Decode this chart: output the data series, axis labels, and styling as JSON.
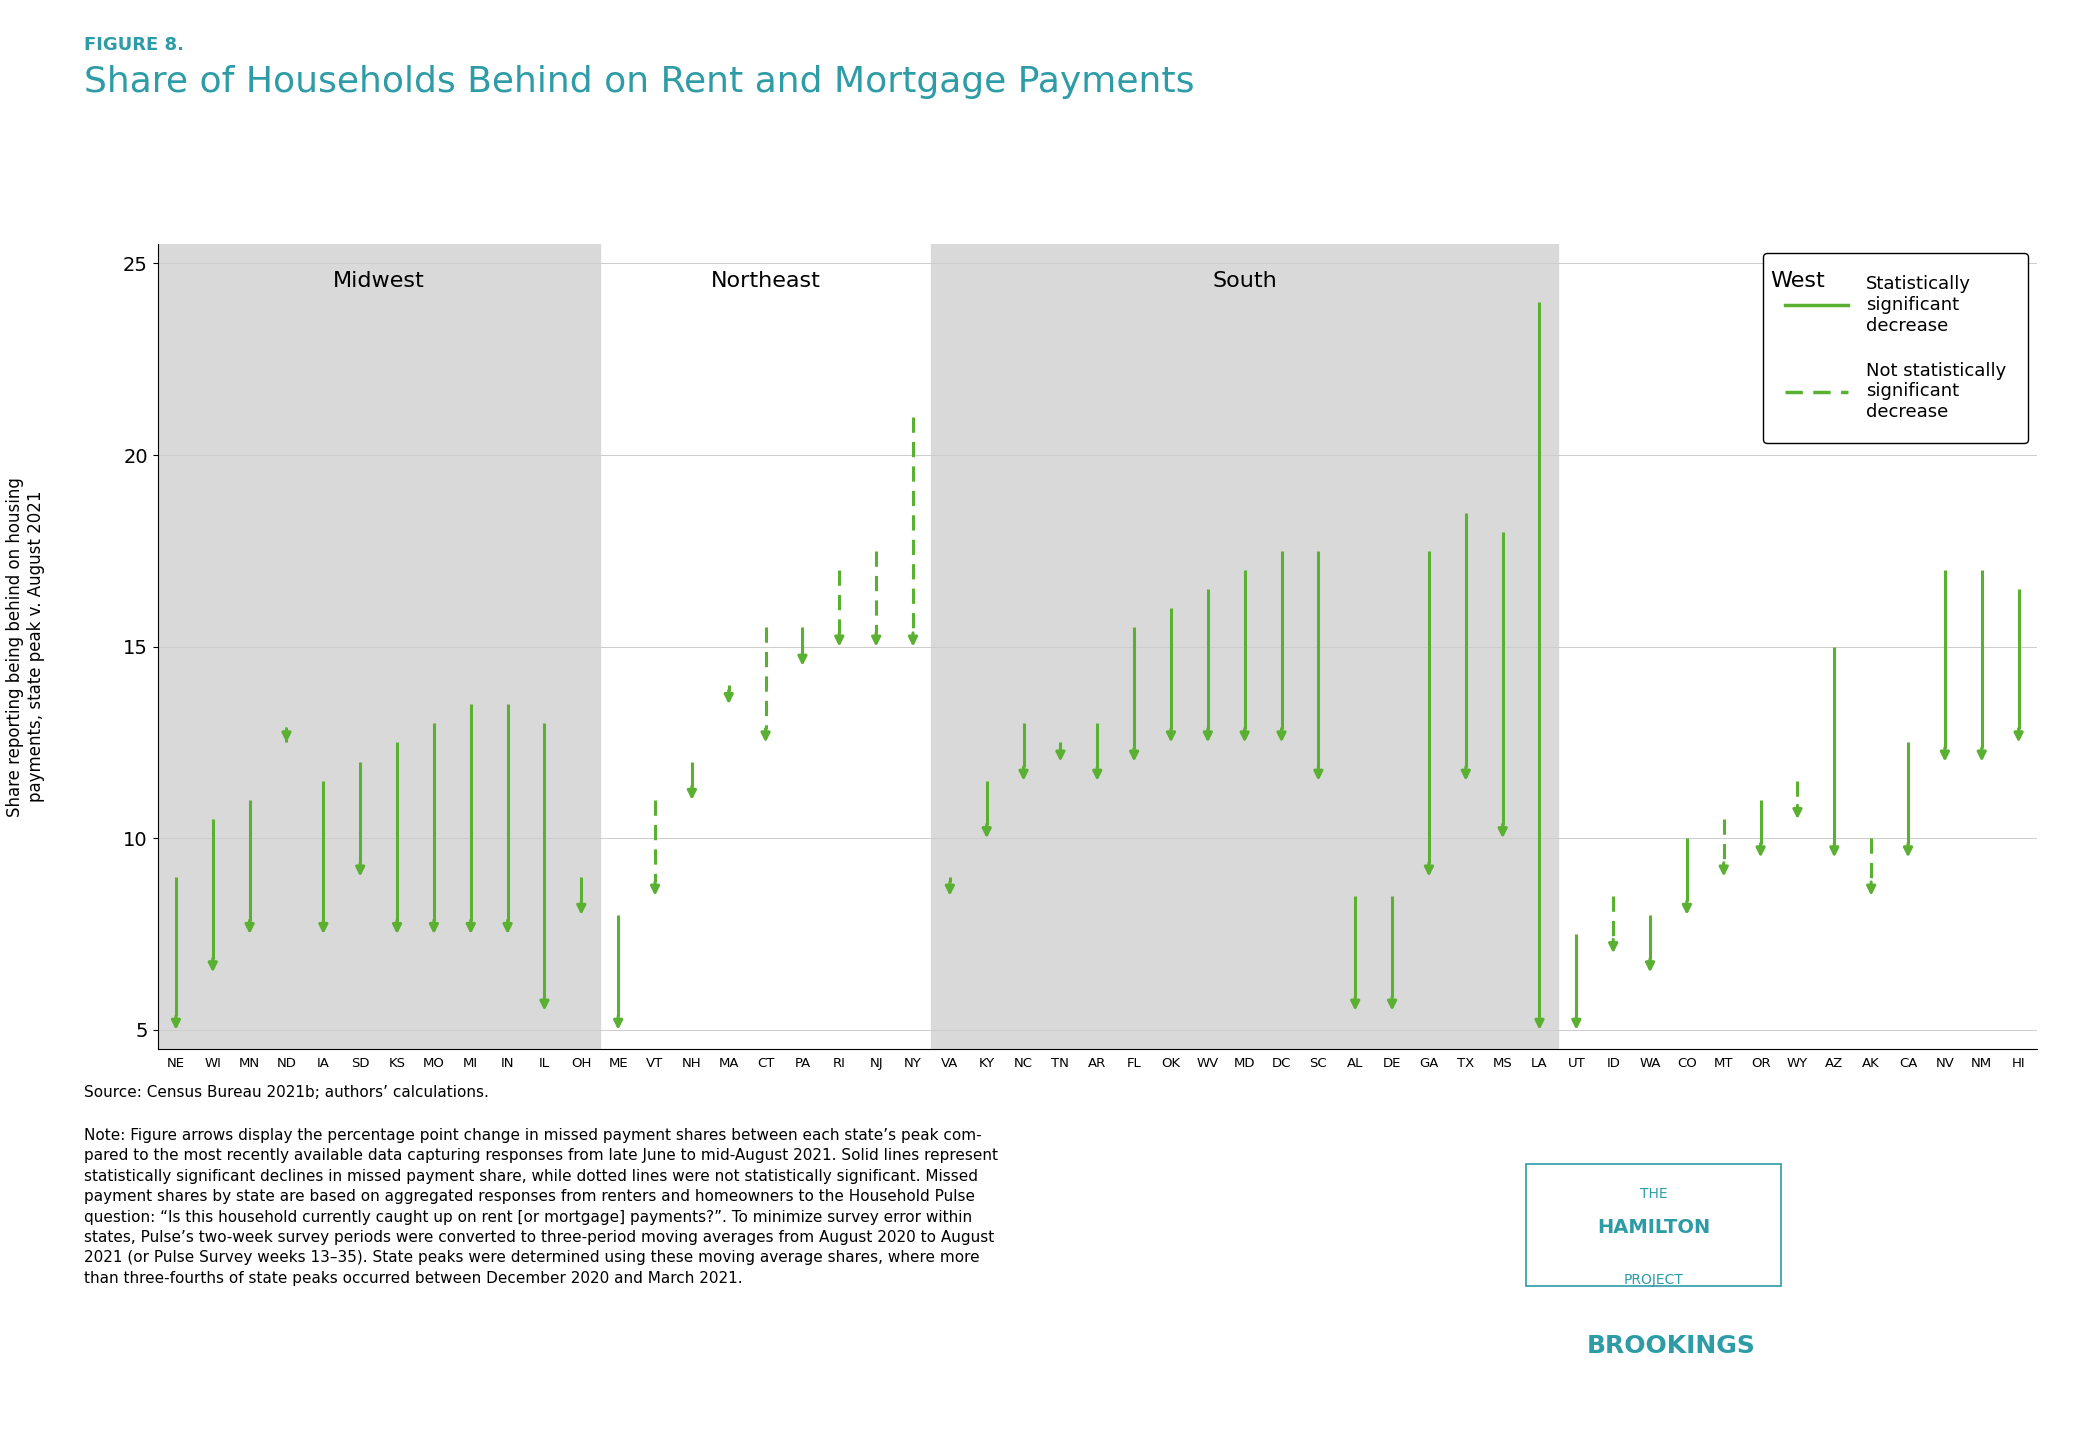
{
  "figure_label": "FIGURE 8.",
  "title": "Share of Households Behind on Rent and Mortgage Payments",
  "ylabel": "Share reporting being behind on housing\npayments, state peak v. August 2021",
  "source_text": "Source: Census Bureau 2021b; authors’ calculations.",
  "note_text": "Note: Figure arrows display the percentage point change in missed payment shares between each state’s peak com-\npared to the most recently available data capturing responses from late June to mid-August 2021. Solid lines represent\nstatistically significant declines in missed payment share, while dotted lines were not statistically significant. Missed\npayment shares by state are based on aggregated responses from renters and homeowners to the Household Pulse\nquestion: “Is this household currently caught up on rent [or mortgage] payments?”. To minimize survey error within\nstates, Pulse’s two-week survey periods were converted to three-period moving averages from August 2020 to August\n2021 (or Pulse Survey weeks 13–35). State peaks were determined using these moving average shares, where more\nthan three-fourths of state peaks occurred between December 2020 and March 2021.",
  "states": [
    "NE",
    "WI",
    "MN",
    "ND",
    "IA",
    "SD",
    "KS",
    "MO",
    "MI",
    "IN",
    "IL",
    "OH",
    "ME",
    "VT",
    "NH",
    "MA",
    "CT",
    "PA",
    "RI",
    "NJ",
    "NY",
    "VA",
    "KY",
    "NC",
    "TN",
    "AR",
    "FL",
    "OK",
    "WV",
    "MD",
    "DC",
    "SC",
    "AL",
    "DE",
    "GA",
    "TX",
    "MS",
    "LA",
    "UT",
    "ID",
    "WA",
    "CO",
    "MT",
    "OR",
    "WY",
    "AZ",
    "AK",
    "CA",
    "NV",
    "NM",
    "HI"
  ],
  "peak_values": [
    9.0,
    10.5,
    11.0,
    12.5,
    11.5,
    12.0,
    12.5,
    13.0,
    13.5,
    13.5,
    13.0,
    9.0,
    8.0,
    11.0,
    12.0,
    14.0,
    15.5,
    15.5,
    17.0,
    17.5,
    21.0,
    9.0,
    11.5,
    13.0,
    12.5,
    13.0,
    15.5,
    16.0,
    16.5,
    17.0,
    17.5,
    17.5,
    8.5,
    8.5,
    17.5,
    18.5,
    18.0,
    24.0,
    7.5,
    8.5,
    8.0,
    10.0,
    10.5,
    11.0,
    11.5,
    15.0,
    10.0,
    12.5,
    17.0,
    17.0,
    16.5
  ],
  "aug2021_values": [
    5.0,
    6.5,
    7.5,
    12.5,
    7.5,
    9.0,
    7.5,
    7.5,
    7.5,
    7.5,
    5.5,
    8.0,
    5.0,
    8.5,
    11.0,
    13.5,
    12.5,
    14.5,
    15.0,
    15.0,
    15.0,
    8.5,
    10.0,
    11.5,
    12.0,
    11.5,
    12.0,
    12.5,
    12.5,
    12.5,
    12.5,
    11.5,
    5.5,
    5.5,
    9.0,
    11.5,
    10.0,
    5.0,
    5.0,
    7.0,
    6.5,
    8.0,
    9.0,
    9.5,
    10.5,
    9.5,
    8.5,
    9.5,
    12.0,
    12.0,
    12.5
  ],
  "significant": [
    true,
    true,
    true,
    false,
    true,
    true,
    true,
    true,
    true,
    true,
    true,
    true,
    true,
    false,
    true,
    false,
    false,
    true,
    false,
    false,
    false,
    true,
    true,
    true,
    true,
    true,
    true,
    true,
    true,
    true,
    true,
    true,
    true,
    true,
    true,
    true,
    true,
    true,
    true,
    false,
    true,
    true,
    false,
    true,
    false,
    true,
    false,
    true,
    true,
    true,
    true
  ],
  "region_ranges": {
    "Midwest": [
      0,
      11,
      true
    ],
    "Northeast": [
      12,
      20,
      false
    ],
    "South": [
      21,
      37,
      true
    ],
    "West": [
      38,
      50,
      false
    ]
  },
  "arrow_color": "#5ab031",
  "background_color": "#ffffff",
  "shaded_color": "#d9d9d9",
  "ylim": [
    4.5,
    25.5
  ],
  "yticks": [
    5,
    10,
    15,
    20,
    25
  ],
  "title_color": "#2e9ca6",
  "figure_label_color": "#2e9ca6",
  "hamilton_color": "#2e9ca6"
}
